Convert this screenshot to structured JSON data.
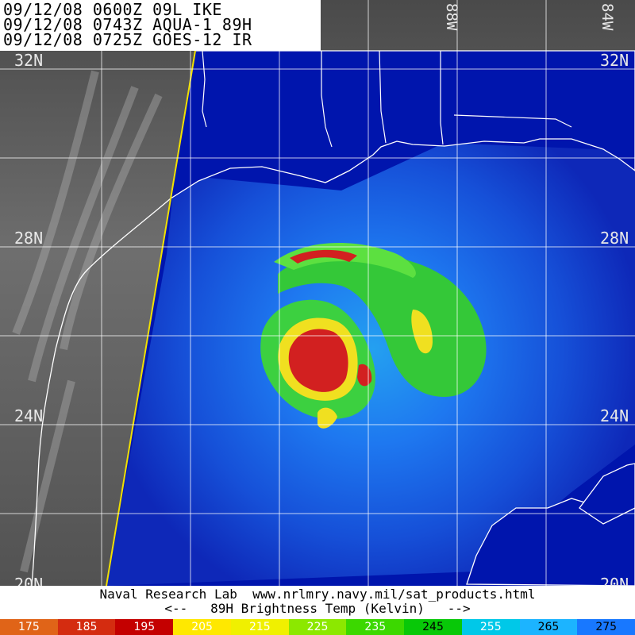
{
  "header": {
    "line1": "09/12/08 0600Z 09L IKE",
    "line2": "09/12/08 0743Z AQUA-1 89H",
    "line3": "09/12/08 0725Z GOES-12 IR"
  },
  "grid": {
    "lat_labels": [
      "32N",
      "28N",
      "24N",
      "20N"
    ],
    "lon_labels": [
      "88W",
      "84W"
    ]
  },
  "footer": {
    "credit": "Naval Research Lab  www.nrlmry.navy.mil/sat_products.html",
    "legend_title": "<--   89H Brightness Temp (Kelvin)   -->"
  },
  "colorbar": {
    "units": "Kelvin",
    "ticks": [
      {
        "value": "175",
        "color": "#e06418",
        "text_color": "#ffffff"
      },
      {
        "value": "185",
        "color": "#d42c10",
        "text_color": "#ffffff"
      },
      {
        "value": "195",
        "color": "#c40000",
        "text_color": "#ffffff"
      },
      {
        "value": "205",
        "color": "#ffe800",
        "text_color": "#ffffff"
      },
      {
        "value": "215",
        "color": "#f0f000",
        "text_color": "#ffffff"
      },
      {
        "value": "225",
        "color": "#8ce800",
        "text_color": "#ffffff"
      },
      {
        "value": "235",
        "color": "#3cd800",
        "text_color": "#ffffff"
      },
      {
        "value": "245",
        "color": "#08c808",
        "text_color": "#000000"
      },
      {
        "value": "255",
        "color": "#00c8e8",
        "text_color": "#ffffff"
      },
      {
        "value": "265",
        "color": "#1cb4ff",
        "text_color": "#000000"
      },
      {
        "value": "275",
        "color": "#1878ff",
        "text_color": "#000000"
      }
    ]
  },
  "colors": {
    "ocean_deep": "#0015ad",
    "ocean_shallow": "#1e78f0",
    "ir_gray": "#5a5a5a",
    "coastline": "#ffffff",
    "swath_edge": "#f0e000",
    "storm_red": "#d22020",
    "storm_yellow": "#f0e020",
    "storm_green": "#40d020"
  }
}
